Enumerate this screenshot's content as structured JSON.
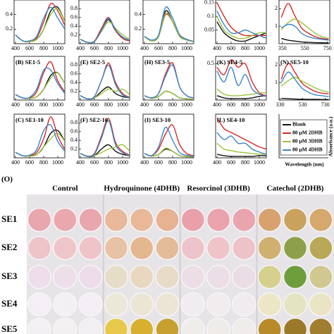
{
  "legend": {
    "series": [
      {
        "name": "Blank",
        "color": "#111111"
      },
      {
        "name": "80 μM 2DHB",
        "color": "#d62828"
      },
      {
        "name": "80 μM 3DHB",
        "color": "#9bc43a"
      },
      {
        "name": "80 μM 4DHB",
        "color": "#3c86c6"
      }
    ],
    "ylabel": "Absorbance (a.u.)",
    "xlabel": "Wavelength (nm)"
  },
  "chart_data": [
    {
      "type": "line",
      "x": [
        400,
        500,
        600,
        700,
        800,
        900,
        1000,
        1100
      ],
      "xlim": [
        380,
        1100
      ],
      "xticks": [
        400,
        600,
        800,
        1000
      ],
      "ylim": [
        0,
        0.6
      ],
      "yticks": [
        0.2,
        0.4
      ],
      "series": [
        {
          "values": [
            0.12,
            0.04,
            0.03,
            0.06,
            0.2,
            0.45,
            0.5,
            0.3
          ]
        },
        {
          "values": [
            0.12,
            0.04,
            0.03,
            0.08,
            0.3,
            0.55,
            0.45,
            0.25
          ]
        },
        {
          "values": [
            0.12,
            0.04,
            0.03,
            0.06,
            0.2,
            0.4,
            0.48,
            0.3
          ]
        },
        {
          "values": [
            0.12,
            0.04,
            0.04,
            0.1,
            0.35,
            0.5,
            0.35,
            0.2
          ]
        }
      ]
    },
    {
      "type": "line",
      "x": [
        400,
        500,
        600,
        700,
        800,
        900,
        1000,
        1100
      ],
      "xlim": [
        380,
        1100
      ],
      "xticks": [
        400,
        600,
        800,
        1000
      ],
      "ylim": [
        0,
        1
      ],
      "yticks": [
        0.2,
        0.4,
        0.6,
        0.8
      ],
      "series": [
        {
          "values": [
            0.1,
            0.03,
            0.05,
            0.3,
            0.55,
            0.3,
            0.15,
            0.08
          ]
        },
        {
          "values": [
            0.1,
            0.03,
            0.06,
            0.35,
            0.6,
            0.3,
            0.12,
            0.06
          ]
        },
        {
          "values": [
            0.1,
            0.03,
            0.05,
            0.28,
            0.5,
            0.35,
            0.2,
            0.1
          ]
        },
        {
          "values": [
            0.1,
            0.03,
            0.05,
            0.3,
            0.58,
            0.32,
            0.15,
            0.08
          ]
        }
      ]
    },
    {
      "type": "line",
      "x": [
        400,
        500,
        600,
        700,
        800,
        900,
        1000,
        1100
      ],
      "xlim": [
        380,
        1100
      ],
      "xticks": [
        400,
        600,
        800,
        1000
      ],
      "ylim": [
        0,
        0.6
      ],
      "yticks": [
        0.2,
        0.4
      ],
      "series": [
        {
          "values": [
            0.1,
            0.04,
            0.1,
            0.45,
            0.3,
            0.1,
            0.05,
            0.03
          ]
        },
        {
          "values": [
            0.1,
            0.04,
            0.1,
            0.4,
            0.3,
            0.12,
            0.06,
            0.03
          ]
        },
        {
          "values": [
            0.1,
            0.04,
            0.1,
            0.42,
            0.3,
            0.1,
            0.05,
            0.03
          ]
        },
        {
          "values": [
            0.1,
            0.05,
            0.12,
            0.5,
            0.35,
            0.12,
            0.06,
            0.03
          ]
        }
      ]
    },
    {
      "type": "line",
      "x": [
        400,
        500,
        600,
        700,
        800,
        900,
        1000,
        1100
      ],
      "xlim": [
        380,
        1100
      ],
      "xticks": [
        400,
        600,
        800,
        1000
      ],
      "ylim": [
        0,
        0.16
      ],
      "yticks": [
        0.05,
        0.1,
        0.15
      ],
      "series": [
        {
          "values": [
            0.08,
            0.04,
            0.02,
            0.01,
            0.01,
            0.02,
            0.03,
            0.04
          ]
        },
        {
          "values": [
            0.15,
            0.1,
            0.06,
            0.04,
            0.03,
            0.03,
            0.03,
            0.03
          ]
        },
        {
          "values": [
            0.1,
            0.05,
            0.03,
            0.02,
            0.02,
            0.03,
            0.04,
            0.04
          ]
        },
        {
          "values": [
            0.12,
            0.07,
            0.04,
            0.04,
            0.05,
            0.04,
            0.03,
            0.02
          ]
        }
      ]
    },
    {
      "type": "line",
      "x": [
        340,
        400,
        460,
        520,
        580,
        640,
        700,
        760
      ],
      "xlim": [
        320,
        770
      ],
      "xticks": [
        350,
        550,
        750
      ],
      "ylim": [
        0,
        2.5
      ],
      "yticks": [
        1,
        2
      ],
      "series": [
        {
          "values": [
            0.3,
            0.2,
            0.15,
            0.1,
            0.08,
            0.06,
            0.05,
            0.05
          ]
        },
        {
          "values": [
            1.5,
            2.3,
            1.6,
            0.9,
            0.6,
            0.4,
            0.3,
            0.25
          ]
        },
        {
          "values": [
            0.8,
            1.2,
            1.4,
            1.2,
            0.9,
            0.6,
            0.4,
            0.3
          ]
        },
        {
          "values": [
            0.9,
            1.1,
            1.0,
            0.6,
            0.4,
            0.3,
            0.25,
            0.2
          ]
        }
      ]
    },
    {
      "type": "line",
      "title": "(B) SE1-5",
      "x": [
        400,
        500,
        600,
        700,
        800,
        900,
        1000,
        1100
      ],
      "xlim": [
        380,
        1100
      ],
      "xticks": [
        400,
        600,
        800,
        1000
      ],
      "ylim": [
        0,
        0.8
      ],
      "series": [
        {
          "values": [
            0.1,
            0.04,
            0.03,
            0.06,
            0.2,
            0.45,
            0.5,
            0.3
          ]
        },
        {
          "values": [
            0.1,
            0.04,
            0.04,
            0.15,
            0.5,
            0.7,
            0.35,
            0.15
          ]
        },
        {
          "values": [
            0.1,
            0.04,
            0.03,
            0.06,
            0.2,
            0.4,
            0.5,
            0.3
          ]
        },
        {
          "values": [
            0.1,
            0.04,
            0.05,
            0.2,
            0.55,
            0.55,
            0.3,
            0.12
          ]
        }
      ]
    },
    {
      "type": "line",
      "title": "(E) SE2-5",
      "x": [
        400,
        500,
        600,
        700,
        800,
        900,
        1000,
        1100
      ],
      "xlim": [
        380,
        1100
      ],
      "xticks": [
        400,
        600,
        800,
        1000
      ],
      "ylim": [
        0,
        1
      ],
      "yticks": [
        0.2,
        0.4,
        0.6,
        0.8
      ],
      "series": [
        {
          "values": [
            0.1,
            0.03,
            0.05,
            0.2,
            0.3,
            0.15,
            0.08,
            0.05
          ]
        },
        {
          "values": [
            0.1,
            0.03,
            0.08,
            0.45,
            0.85,
            0.4,
            0.15,
            0.06
          ]
        },
        {
          "values": [
            0.1,
            0.03,
            0.05,
            0.15,
            0.25,
            0.2,
            0.25,
            0.12
          ]
        },
        {
          "values": [
            0.1,
            0.03,
            0.08,
            0.45,
            0.8,
            0.35,
            0.12,
            0.05
          ]
        }
      ]
    },
    {
      "type": "line",
      "title": "(H) SE3-5",
      "x": [
        400,
        500,
        600,
        700,
        800,
        900,
        1000,
        1100
      ],
      "xlim": [
        380,
        1100
      ],
      "xticks": [
        400,
        600,
        800,
        1000
      ],
      "ylim": [
        0,
        1
      ],
      "series": [
        {
          "values": [
            0.1,
            0.04,
            0.08,
            0.2,
            0.15,
            0.05,
            0.03,
            0.02
          ]
        },
        {
          "values": [
            0.1,
            0.05,
            0.15,
            0.6,
            0.85,
            0.3,
            0.1,
            0.05
          ]
        },
        {
          "values": [
            0.1,
            0.04,
            0.08,
            0.2,
            0.15,
            0.05,
            0.03,
            0.02
          ]
        },
        {
          "values": [
            0.1,
            0.05,
            0.15,
            0.55,
            0.8,
            0.3,
            0.1,
            0.05
          ]
        }
      ]
    },
    {
      "type": "line",
      "title": "(K) SE4-5",
      "x": [
        400,
        500,
        600,
        700,
        800,
        900,
        1000,
        1100
      ],
      "xlim": [
        380,
        1100
      ],
      "xticks": [
        400,
        600,
        800,
        1000
      ],
      "ylim": [
        0,
        0.6
      ],
      "yticks": [
        0.5
      ],
      "series": [
        {
          "values": [
            0.06,
            0.03,
            0.02,
            0.02,
            0.02,
            0.03,
            0.05,
            0.06
          ]
        },
        {
          "values": [
            0.45,
            0.35,
            0.55,
            0.45,
            0.5,
            0.25,
            0.1,
            0.06
          ]
        },
        {
          "values": [
            0.15,
            0.08,
            0.06,
            0.06,
            0.07,
            0.08,
            0.1,
            0.1
          ]
        },
        {
          "values": [
            0.4,
            0.25,
            0.45,
            0.2,
            0.35,
            0.15,
            0.08,
            0.05
          ]
        }
      ]
    },
    {
      "type": "line",
      "title": "(N) SE5-10",
      "x": [
        340,
        400,
        460,
        520,
        580,
        640,
        700,
        760
      ],
      "xlim": [
        320,
        770
      ],
      "xticks": [
        330,
        530,
        730
      ],
      "ylim": [
        0,
        2.5
      ],
      "yticks": [
        1,
        2
      ],
      "series": [
        {
          "values": [
            0.1,
            0.08,
            0.06,
            0.05,
            0.04,
            0.04,
            0.03,
            0.03
          ]
        },
        {
          "values": [
            1.2,
            2.1,
            1.6,
            1.0,
            0.7,
            0.5,
            0.4,
            0.35
          ]
        },
        {
          "values": [
            0.8,
            1.1,
            1.3,
            1.1,
            0.9,
            0.7,
            0.55,
            0.45
          ]
        },
        {
          "values": [
            1.0,
            1.6,
            1.2,
            0.7,
            0.45,
            0.3,
            0.25,
            0.2
          ]
        }
      ]
    },
    {
      "type": "line",
      "title": "(C) SE1-10",
      "x": [
        400,
        500,
        600,
        700,
        800,
        900,
        1000,
        1100
      ],
      "xlim": [
        380,
        1100
      ],
      "xticks": [
        400,
        600,
        800,
        1000
      ],
      "ylim": [
        0,
        0.8
      ],
      "series": [
        {
          "values": [
            0.1,
            0.04,
            0.03,
            0.06,
            0.2,
            0.45,
            0.5,
            0.3
          ]
        },
        {
          "values": [
            0.1,
            0.04,
            0.04,
            0.1,
            0.35,
            0.75,
            0.4,
            0.15
          ]
        },
        {
          "values": [
            0.1,
            0.04,
            0.03,
            0.06,
            0.2,
            0.35,
            0.45,
            0.3
          ]
        },
        {
          "values": [
            0.1,
            0.04,
            0.05,
            0.15,
            0.5,
            0.6,
            0.3,
            0.12
          ]
        }
      ]
    },
    {
      "type": "line",
      "title": "(F) SE2-10",
      "x": [
        400,
        500,
        600,
        700,
        800,
        900,
        1000,
        1100
      ],
      "xlim": [
        380,
        1100
      ],
      "xticks": [
        400,
        600,
        800,
        1000
      ],
      "ylim": [
        0,
        1
      ],
      "yticks": [
        0.2,
        0.4,
        0.6,
        0.8
      ],
      "series": [
        {
          "values": [
            0.1,
            0.03,
            0.05,
            0.2,
            0.3,
            0.15,
            0.08,
            0.05
          ]
        },
        {
          "values": [
            0.1,
            0.04,
            0.1,
            0.5,
            0.9,
            0.35,
            0.15,
            0.06
          ]
        },
        {
          "values": [
            0.1,
            0.03,
            0.05,
            0.12,
            0.2,
            0.25,
            0.3,
            0.15
          ]
        },
        {
          "values": [
            0.1,
            0.04,
            0.08,
            0.45,
            0.85,
            0.3,
            0.12,
            0.05
          ]
        }
      ]
    },
    {
      "type": "line",
      "title": "(I) SE3-10",
      "x": [
        400,
        500,
        600,
        700,
        800,
        900,
        1000,
        1100
      ],
      "xlim": [
        380,
        1100
      ],
      "xticks": [
        400,
        600,
        800,
        1000
      ],
      "ylim": [
        0,
        1
      ],
      "series": [
        {
          "values": [
            0.1,
            0.04,
            0.08,
            0.2,
            0.15,
            0.05,
            0.03,
            0.02
          ]
        },
        {
          "values": [
            0.1,
            0.05,
            0.2,
            0.55,
            0.75,
            0.3,
            0.1,
            0.05
          ]
        },
        {
          "values": [
            0.1,
            0.04,
            0.08,
            0.22,
            0.15,
            0.05,
            0.03,
            0.02
          ]
        },
        {
          "values": [
            0.1,
            0.05,
            0.25,
            0.7,
            0.4,
            0.12,
            0.06,
            0.03
          ]
        }
      ]
    },
    {
      "type": "line",
      "title": "(L) SE4-10",
      "x": [
        400,
        500,
        600,
        700,
        800,
        900,
        1000,
        1100
      ],
      "xlim": [
        380,
        1100
      ],
      "xticks": [
        400,
        600,
        800,
        1000
      ],
      "ylim": [
        0,
        0.6
      ],
      "series": [
        {
          "values": [
            0.05,
            0.03,
            0.02,
            0.02,
            0.02,
            0.02,
            0.03,
            0.03
          ]
        },
        {
          "values": [
            0.55,
            0.4,
            0.35,
            0.3,
            0.25,
            0.2,
            0.15,
            0.12
          ]
        },
        {
          "values": [
            0.2,
            0.12,
            0.1,
            0.08,
            0.07,
            0.06,
            0.05,
            0.05
          ]
        },
        {
          "values": [
            0.35,
            0.25,
            0.3,
            0.2,
            0.2,
            0.12,
            0.08,
            0.05
          ]
        }
      ]
    }
  ],
  "plate": {
    "label": "(O)",
    "groups": [
      "Control",
      "Hydroquinone (4DHB)",
      "Resorcinol (3DHB)",
      "Catechol (2DHB)"
    ],
    "rows": [
      {
        "name": "SE1",
        "wells": [
          "#e8a6ad",
          "#e9a8ae",
          "#e8a7ad",
          "#e8b89a",
          "#e9b898",
          "#e6b292",
          "#eaa0ab",
          "#eaa3ad",
          "#e9a5ae",
          "#d7a26e",
          "#c9a25e",
          "#d5a86e"
        ]
      },
      {
        "name": "SE2",
        "wells": [
          "#efc4c8",
          "#efc5c9",
          "#eec4c8",
          "#e8c2a4",
          "#e3b88e",
          "#e4bb98",
          "#eec3c9",
          "#eec4c9",
          "#edc3c8",
          "#cfb070",
          "#8ca04a",
          "#b8a858"
        ]
      },
      {
        "name": "SE3",
        "wells": [
          "#eeddeb",
          "#eedeea",
          "#eddcea",
          "#e6dcc8",
          "#e8d8c0",
          "#e7dbc7",
          "#ecdde6",
          "#ecdee6",
          "#ebdce6",
          "#d6d08e",
          "#6e9e3c",
          "#cfc890"
        ]
      },
      {
        "name": "SE4",
        "wells": [
          "#f4eff4",
          "#f4eff3",
          "#f3eef3",
          "#ece8d8",
          "#ebe6d4",
          "#ece5d6",
          "#f1ecef",
          "#f1ecee",
          "#f0ebee",
          "#ece6c4",
          "#e5e4c0",
          "#ebe4c4"
        ]
      },
      {
        "name": "SE5",
        "wells": [
          "#f2f0f2",
          "#f2f0f1",
          "#f1eff1",
          "#e8c84a",
          "#d6b02e",
          "#c8a030",
          "#f0ecea",
          "#efebe9",
          "#f0ecea",
          "#b88a2a",
          "#9a7a28",
          "#a07e30"
        ]
      }
    ]
  }
}
